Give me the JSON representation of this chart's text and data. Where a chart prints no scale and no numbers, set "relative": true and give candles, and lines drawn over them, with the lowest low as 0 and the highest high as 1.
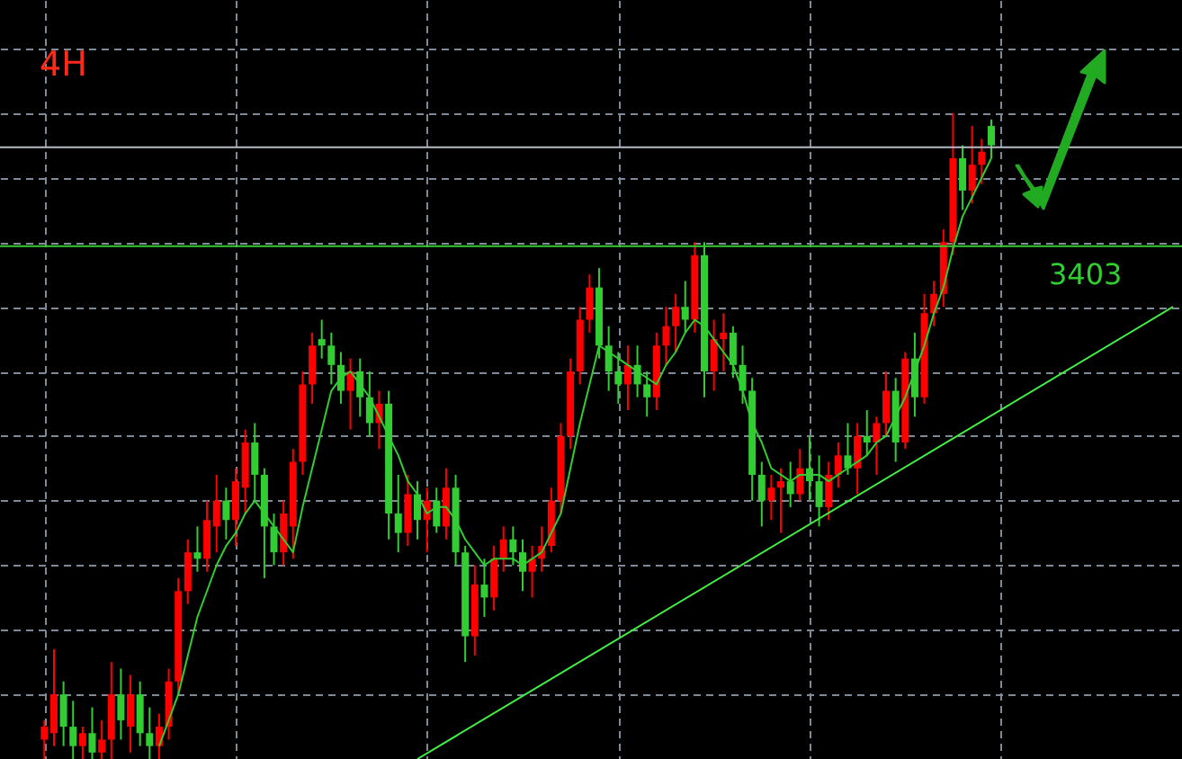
{
  "chart_data": {
    "type": "candlestick",
    "title": "4H",
    "relative": true,
    "grid": true,
    "tick_labels": false,
    "categories": [
      null,
      null,
      null,
      null,
      null,
      null,
      null,
      null,
      null,
      null,
      null,
      null,
      null,
      null,
      null,
      null,
      null,
      null,
      null,
      null,
      null,
      null,
      null,
      null,
      null,
      null,
      null,
      null,
      null,
      null,
      null,
      null,
      null,
      null,
      null,
      null,
      null,
      null,
      null,
      null,
      null,
      null,
      null,
      null,
      null,
      null,
      null,
      null,
      null,
      null,
      null,
      null,
      null,
      null,
      null,
      null,
      null,
      null,
      null,
      null,
      null,
      null,
      null,
      null,
      null,
      null,
      null,
      null,
      null,
      null,
      null,
      null,
      null,
      null,
      null,
      null,
      null,
      null,
      null,
      null,
      null,
      null,
      null,
      null,
      null,
      null,
      null,
      null,
      null,
      null,
      null,
      null,
      null,
      null,
      null,
      null,
      null,
      null,
      null,
      null,
      null,
      null,
      null,
      null,
      null,
      null,
      null,
      null,
      null,
      null,
      null,
      null,
      null,
      null,
      null,
      null,
      null,
      null,
      null
    ],
    "ohlc": [
      [
        0.03,
        0.06,
        0,
        0.05
      ],
      [
        0.04,
        0.17,
        0.02,
        0.1
      ],
      [
        0.1,
        0.12,
        0.02,
        0.05
      ],
      [
        0.05,
        0.09,
        0,
        0.02
      ],
      [
        0.02,
        0.05,
        0,
        0.04
      ],
      [
        0.04,
        0.08,
        0,
        0.01
      ],
      [
        0.01,
        0.06,
        0,
        0.03
      ],
      [
        0.03,
        0.15,
        0,
        0.1
      ],
      [
        0.1,
        0.14,
        0.03,
        0.06
      ],
      [
        0.05,
        0.13,
        0.01,
        0.1
      ],
      [
        0.1,
        0.12,
        0.02,
        0.04
      ],
      [
        0.04,
        0.08,
        0,
        0.02
      ],
      [
        0.02,
        0.07,
        0,
        0.05
      ],
      [
        0.05,
        0.14,
        0.03,
        0.12
      ],
      [
        0.12,
        0.28,
        0.1,
        0.26
      ],
      [
        0.26,
        0.34,
        0.24,
        0.32
      ],
      [
        0.32,
        0.36,
        0.29,
        0.31
      ],
      [
        0.31,
        0.4,
        0.29,
        0.37
      ],
      [
        0.36,
        0.44,
        0.32,
        0.4
      ],
      [
        0.4,
        0.42,
        0.34,
        0.37
      ],
      [
        0.37,
        0.45,
        0.33,
        0.43
      ],
      [
        0.42,
        0.51,
        0.38,
        0.49
      ],
      [
        0.49,
        0.52,
        0.4,
        0.44
      ],
      [
        0.44,
        0.45,
        0.28,
        0.36
      ],
      [
        0.36,
        0.38,
        0.3,
        0.32
      ],
      [
        0.32,
        0.4,
        0.3,
        0.38
      ],
      [
        0.36,
        0.48,
        0.31,
        0.46
      ],
      [
        0.46,
        0.6,
        0.44,
        0.58
      ],
      [
        0.58,
        0.66,
        0.55,
        0.64
      ],
      [
        0.65,
        0.68,
        0.62,
        0.64
      ],
      [
        0.64,
        0.66,
        0.58,
        0.61
      ],
      [
        0.61,
        0.63,
        0.55,
        0.57
      ],
      [
        0.57,
        0.62,
        0.51,
        0.6
      ],
      [
        0.6,
        0.62,
        0.53,
        0.56
      ],
      [
        0.56,
        0.6,
        0.5,
        0.52
      ],
      [
        0.52,
        0.57,
        0.48,
        0.55
      ],
      [
        0.55,
        0.57,
        0.34,
        0.38
      ],
      [
        0.38,
        0.44,
        0.32,
        0.35
      ],
      [
        0.35,
        0.44,
        0.33,
        0.41
      ],
      [
        0.41,
        0.43,
        0.34,
        0.37
      ],
      [
        0.37,
        0.42,
        0.32,
        0.4
      ],
      [
        0.4,
        0.42,
        0.35,
        0.36
      ],
      [
        0.36,
        0.45,
        0.34,
        0.42
      ],
      [
        0.42,
        0.44,
        0.3,
        0.32
      ],
      [
        0.32,
        0.33,
        0.15,
        0.19
      ],
      [
        0.19,
        0.3,
        0.16,
        0.27
      ],
      [
        0.27,
        0.31,
        0.22,
        0.25
      ],
      [
        0.25,
        0.33,
        0.23,
        0.31
      ],
      [
        0.31,
        0.36,
        0.29,
        0.34
      ],
      [
        0.34,
        0.36,
        0.3,
        0.32
      ],
      [
        0.32,
        0.34,
        0.26,
        0.29
      ],
      [
        0.29,
        0.33,
        0.25,
        0.31
      ],
      [
        0.31,
        0.36,
        0.29,
        0.33
      ],
      [
        0.33,
        0.42,
        0.32,
        0.4
      ],
      [
        0.4,
        0.52,
        0.38,
        0.5
      ],
      [
        0.5,
        0.62,
        0.48,
        0.6
      ],
      [
        0.6,
        0.7,
        0.58,
        0.68
      ],
      [
        0.68,
        0.75,
        0.66,
        0.73
      ],
      [
        0.73,
        0.76,
        0.62,
        0.64
      ],
      [
        0.64,
        0.67,
        0.57,
        0.6
      ],
      [
        0.6,
        0.63,
        0.55,
        0.58
      ],
      [
        0.58,
        0.64,
        0.54,
        0.61
      ],
      [
        0.61,
        0.64,
        0.56,
        0.58
      ],
      [
        0.58,
        0.6,
        0.53,
        0.56
      ],
      [
        0.56,
        0.66,
        0.54,
        0.64
      ],
      [
        0.64,
        0.7,
        0.61,
        0.67
      ],
      [
        0.67,
        0.72,
        0.63,
        0.7
      ],
      [
        0.7,
        0.74,
        0.66,
        0.68
      ],
      [
        0.68,
        0.8,
        0.66,
        0.78
      ],
      [
        0.78,
        0.8,
        0.56,
        0.6
      ],
      [
        0.6,
        0.68,
        0.57,
        0.65
      ],
      [
        0.65,
        0.69,
        0.6,
        0.66
      ],
      [
        0.66,
        0.67,
        0.59,
        0.61
      ],
      [
        0.61,
        0.64,
        0.55,
        0.57
      ],
      [
        0.57,
        0.59,
        0.4,
        0.44
      ],
      [
        0.44,
        0.46,
        0.36,
        0.4
      ],
      [
        0.4,
        0.44,
        0.37,
        0.42
      ],
      [
        0.42,
        0.45,
        0.35,
        0.43
      ],
      [
        0.43,
        0.46,
        0.39,
        0.41
      ],
      [
        0.41,
        0.48,
        0.4,
        0.45
      ],
      [
        0.45,
        0.5,
        0.4,
        0.43
      ],
      [
        0.43,
        0.47,
        0.36,
        0.39
      ],
      [
        0.39,
        0.46,
        0.37,
        0.44
      ],
      [
        0.44,
        0.49,
        0.42,
        0.47
      ],
      [
        0.47,
        0.52,
        0.44,
        0.45
      ],
      [
        0.45,
        0.52,
        0.41,
        0.5
      ],
      [
        0.5,
        0.54,
        0.47,
        0.49
      ],
      [
        0.49,
        0.53,
        0.44,
        0.52
      ],
      [
        0.52,
        0.6,
        0.5,
        0.57
      ],
      [
        0.57,
        0.59,
        0.46,
        0.49
      ],
      [
        0.49,
        0.63,
        0.48,
        0.62
      ],
      [
        0.62,
        0.66,
        0.53,
        0.56
      ],
      [
        0.56,
        0.72,
        0.55,
        0.69
      ],
      [
        0.69,
        0.74,
        0.67,
        0.72
      ],
      [
        0.72,
        0.82,
        0.7,
        0.8
      ],
      [
        0.8,
        1,
        0.78,
        0.93
      ],
      [
        0.93,
        0.95,
        0.85,
        0.88
      ],
      [
        0.88,
        0.98,
        0.86,
        0.92
      ],
      [
        0.92,
        0.96,
        0.89,
        0.94
      ],
      [
        0.98,
        0.99,
        0.93,
        0.95
      ],
      null,
      null,
      null,
      null,
      null,
      null,
      null,
      null,
      null,
      null,
      null,
      null,
      null,
      null,
      null,
      null,
      null,
      null,
      null
    ],
    "colors": [
      "#ff0000",
      "#ff0000",
      "#32cd32",
      "#32cd32",
      "#ff0000",
      "#32cd32",
      "#ff0000",
      "#ff0000",
      "#32cd32",
      "#ff0000",
      "#32cd32",
      "#32cd32",
      "#ff0000",
      "#ff0000",
      "#ff0000",
      "#ff0000",
      "#32cd32",
      "#ff0000",
      "#ff0000",
      "#32cd32",
      "#ff0000",
      "#ff0000",
      "#32cd32",
      "#32cd32",
      "#32cd32",
      "#ff0000",
      "#ff0000",
      "#ff0000",
      "#ff0000",
      "#32cd32",
      "#32cd32",
      "#32cd32",
      "#ff0000",
      "#32cd32",
      "#32cd32",
      "#ff0000",
      "#32cd32",
      "#32cd32",
      "#ff0000",
      "#32cd32",
      "#ff0000",
      "#32cd32",
      "#ff0000",
      "#32cd32",
      "#32cd32",
      "#ff0000",
      "#32cd32",
      "#ff0000",
      "#ff0000",
      "#32cd32",
      "#32cd32",
      "#ff0000",
      "#ff0000",
      "#ff0000",
      "#ff0000",
      "#ff0000",
      "#ff0000",
      "#ff0000",
      "#32cd32",
      "#32cd32",
      "#32cd32",
      "#ff0000",
      "#32cd32",
      "#32cd32",
      "#ff0000",
      "#ff0000",
      "#ff0000",
      "#32cd32",
      "#ff0000",
      "#32cd32",
      "#ff0000",
      "#ff0000",
      "#32cd32",
      "#32cd32",
      "#32cd32",
      "#32cd32",
      "#ff0000",
      "#ff0000",
      "#32cd32",
      "#ff0000",
      "#32cd32",
      "#32cd32",
      "#ff0000",
      "#ff0000",
      "#32cd32",
      "#ff0000",
      "#32cd32",
      "#ff0000",
      "#ff0000",
      "#32cd32",
      "#ff0000",
      "#32cd32",
      "#ff0000",
      "#ff0000",
      "#ff0000",
      "#ff0000",
      "#32cd32",
      "#ff0000",
      "#ff0000",
      "#32cd32",
      null,
      null,
      null,
      null,
      null,
      null,
      null,
      null,
      null,
      null,
      null,
      null,
      null,
      null,
      null,
      null,
      null,
      null,
      null
    ],
    "series": [
      {
        "type": "line",
        "color": "#32cd32",
        "values": [
          null,
          null,
          null,
          null,
          null,
          null,
          null,
          null,
          null,
          null,
          null,
          null,
          0.02,
          0.06,
          0.1,
          0.16,
          0.22,
          0.26,
          0.3,
          0.33,
          0.35,
          0.38,
          0.4,
          0.38,
          0.36,
          0.34,
          0.32,
          0.39,
          0.45,
          0.51,
          0.57,
          0.59,
          0.6,
          0.58,
          0.56,
          0.53,
          0.5,
          0.47,
          0.43,
          0.41,
          0.38,
          0.39,
          0.39,
          0.37,
          0.34,
          0.32,
          0.3,
          0.31,
          0.31,
          0.31,
          0.3,
          0.31,
          0.32,
          0.35,
          0.38,
          0.45,
          0.52,
          0.58,
          0.64,
          0.63,
          0.62,
          0.61,
          0.6,
          0.59,
          0.58,
          0.61,
          0.63,
          0.66,
          0.68,
          0.67,
          0.65,
          0.63,
          0.61,
          0.57,
          0.52,
          0.49,
          0.45,
          0.44,
          0.43,
          0.44,
          0.44,
          0.44,
          0.43,
          0.44,
          0.45,
          0.46,
          0.47,
          0.49,
          0.5,
          0.53,
          0.56,
          0.6,
          0.64,
          0.69,
          0.73,
          0.79,
          0.84,
          0.87,
          0.9,
          0.93,
          null,
          null,
          null,
          null,
          null,
          null,
          null,
          null,
          null,
          null,
          null,
          null,
          null,
          null,
          null,
          null,
          null,
          null,
          null
        ]
      },
      {
        "type": "line",
        "color": "#44ee44",
        "values": [
          null,
          null,
          null,
          null,
          null,
          null,
          null,
          null,
          null,
          null,
          null,
          null,
          null,
          null,
          null,
          null,
          null,
          null,
          null,
          null,
          null,
          null,
          null,
          null,
          null,
          null,
          null,
          null,
          null,
          null,
          null,
          null,
          null,
          null,
          null,
          null,
          null,
          null,
          null,
          0,
          null,
          null,
          null,
          null,
          null,
          null,
          null,
          null,
          null,
          null,
          null,
          null,
          null,
          null,
          null,
          null,
          null,
          null,
          null,
          null,
          null,
          null,
          null,
          null,
          null,
          null,
          null,
          null,
          null,
          null,
          null,
          null,
          null,
          null,
          null,
          null,
          null,
          null,
          null,
          null,
          null,
          null,
          null,
          null,
          null,
          null,
          null,
          null,
          null,
          null,
          null,
          null,
          null,
          null,
          null,
          null,
          null,
          null,
          null,
          null,
          null,
          null,
          null,
          null,
          null,
          null,
          null,
          null,
          null,
          null,
          null,
          null,
          null,
          null,
          null,
          null,
          null,
          null,
          0.7
        ]
      }
    ],
    "ref_lines": [
      {
        "axis": "y",
        "value": 0.947,
        "color": "#b8bcc4"
      },
      {
        "axis": "y",
        "value": 0.794,
        "color": "#32cd32"
      }
    ],
    "annotations": [
      "3403"
    ]
  }
}
